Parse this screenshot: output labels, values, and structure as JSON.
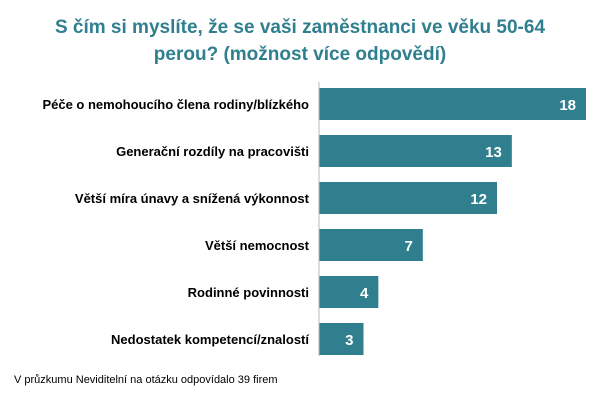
{
  "chart_data": {
    "type": "bar",
    "orientation": "horizontal",
    "title": "S čím si myslíte, že se vaši zaměstnanci ve věku 50-64\nperou? (možnost více odpovědí)",
    "categories": [
      "Péče o nemohoucího člena rodiny/blízkého",
      "Generační rozdíly na pracovišti",
      "Větší míra únavy a snížená výkonnost",
      "Větší nemocnost",
      "Rodinné povinnosti",
      "Nedostatek kompetencí/znalostí"
    ],
    "values": [
      18,
      13,
      12,
      7,
      4,
      3
    ],
    "xlim": [
      0,
      18
    ],
    "grid": false,
    "legend": "none",
    "bar_color": "#2f7f8f",
    "title_color": "#2f7f8f",
    "label_color": "#ffffff",
    "footnote": "V průzkumu Neviditelní na otázku odpovídalo 39 firem"
  }
}
